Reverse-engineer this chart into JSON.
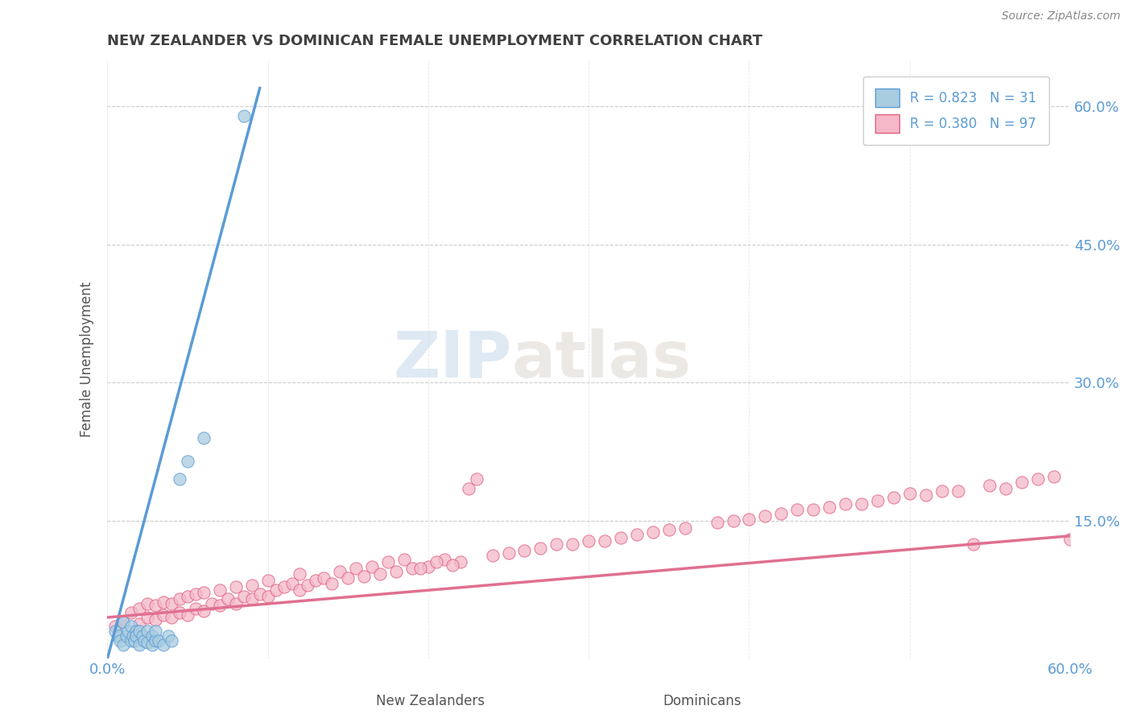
{
  "title": "NEW ZEALANDER VS DOMINICAN FEMALE UNEMPLOYMENT CORRELATION CHART",
  "source": "Source: ZipAtlas.com",
  "ylabel": "Female Unemployment",
  "xlim": [
    0.0,
    0.6
  ],
  "ylim": [
    0.0,
    0.65
  ],
  "ytick_vals": [
    0.0,
    0.15,
    0.3,
    0.45,
    0.6
  ],
  "ytick_labels": [
    "",
    "15.0%",
    "30.0%",
    "45.0%",
    "60.0%"
  ],
  "xtick_left_label": "0.0%",
  "xtick_right_label": "60.0%",
  "watermark_zip": "ZIP",
  "watermark_atlas": "atlas",
  "legend_label1": "R = 0.823   N = 31",
  "legend_label2": "R = 0.380   N = 97",
  "color_nz_fill": "#a8cce0",
  "color_nz_edge": "#5b9bd5",
  "color_dom_fill": "#f4b8c8",
  "color_dom_edge": "#e06080",
  "color_nz_line": "#5b9bd5",
  "color_dom_line": "#e07090",
  "title_color": "#404040",
  "axis_label_color": "#555555",
  "tick_color": "#5b9bd5",
  "grid_color": "#cccccc",
  "background_color": "#ffffff",
  "nz_scatter_x": [
    0.005,
    0.007,
    0.008,
    0.01,
    0.01,
    0.012,
    0.013,
    0.015,
    0.015,
    0.016,
    0.017,
    0.018,
    0.018,
    0.02,
    0.02,
    0.022,
    0.023,
    0.025,
    0.025,
    0.028,
    0.028,
    0.03,
    0.03,
    0.032,
    0.035,
    0.038,
    0.04,
    0.045,
    0.05,
    0.06,
    0.085
  ],
  "nz_scatter_y": [
    0.03,
    0.025,
    0.02,
    0.015,
    0.04,
    0.025,
    0.03,
    0.02,
    0.035,
    0.025,
    0.02,
    0.03,
    0.025,
    0.015,
    0.03,
    0.025,
    0.02,
    0.018,
    0.03,
    0.025,
    0.015,
    0.02,
    0.03,
    0.02,
    0.015,
    0.025,
    0.02,
    0.195,
    0.215,
    0.24,
    0.59
  ],
  "dom_scatter_x": [
    0.005,
    0.01,
    0.015,
    0.02,
    0.02,
    0.025,
    0.025,
    0.03,
    0.03,
    0.035,
    0.035,
    0.04,
    0.04,
    0.045,
    0.045,
    0.05,
    0.05,
    0.055,
    0.055,
    0.06,
    0.06,
    0.065,
    0.07,
    0.07,
    0.075,
    0.08,
    0.08,
    0.085,
    0.09,
    0.09,
    0.095,
    0.1,
    0.1,
    0.105,
    0.11,
    0.115,
    0.12,
    0.12,
    0.125,
    0.13,
    0.135,
    0.14,
    0.145,
    0.15,
    0.155,
    0.16,
    0.165,
    0.17,
    0.175,
    0.18,
    0.185,
    0.19,
    0.2,
    0.21,
    0.22,
    0.225,
    0.23,
    0.24,
    0.25,
    0.26,
    0.27,
    0.28,
    0.29,
    0.3,
    0.32,
    0.33,
    0.34,
    0.35,
    0.36,
    0.38,
    0.39,
    0.4,
    0.41,
    0.42,
    0.44,
    0.45,
    0.46,
    0.48,
    0.49,
    0.5,
    0.52,
    0.54,
    0.55,
    0.56,
    0.57,
    0.58,
    0.59,
    0.6,
    0.31,
    0.43,
    0.47,
    0.51,
    0.53,
    0.61,
    0.215,
    0.195,
    0.205
  ],
  "dom_scatter_y": [
    0.035,
    0.04,
    0.05,
    0.038,
    0.055,
    0.045,
    0.06,
    0.042,
    0.058,
    0.048,
    0.062,
    0.045,
    0.06,
    0.05,
    0.065,
    0.048,
    0.068,
    0.055,
    0.07,
    0.052,
    0.072,
    0.06,
    0.058,
    0.075,
    0.065,
    0.06,
    0.078,
    0.068,
    0.065,
    0.08,
    0.07,
    0.068,
    0.085,
    0.075,
    0.078,
    0.082,
    0.075,
    0.092,
    0.08,
    0.085,
    0.088,
    0.082,
    0.095,
    0.088,
    0.098,
    0.09,
    0.1,
    0.092,
    0.105,
    0.095,
    0.108,
    0.098,
    0.1,
    0.108,
    0.105,
    0.185,
    0.195,
    0.112,
    0.115,
    0.118,
    0.12,
    0.125,
    0.125,
    0.128,
    0.132,
    0.135,
    0.138,
    0.14,
    0.142,
    0.148,
    0.15,
    0.152,
    0.155,
    0.158,
    0.162,
    0.165,
    0.168,
    0.172,
    0.175,
    0.18,
    0.182,
    0.125,
    0.188,
    0.185,
    0.192,
    0.195,
    0.198,
    0.13,
    0.128,
    0.162,
    0.168,
    0.178,
    0.182,
    0.135,
    0.102,
    0.098,
    0.105
  ],
  "nz_line_x": [
    0.0,
    0.095
  ],
  "nz_line_y": [
    0.0,
    0.62
  ],
  "dom_line_x": [
    0.0,
    0.61
  ],
  "dom_line_y": [
    0.045,
    0.135
  ],
  "bottom_label1": "New Zealanders",
  "bottom_label2": "Dominicans"
}
